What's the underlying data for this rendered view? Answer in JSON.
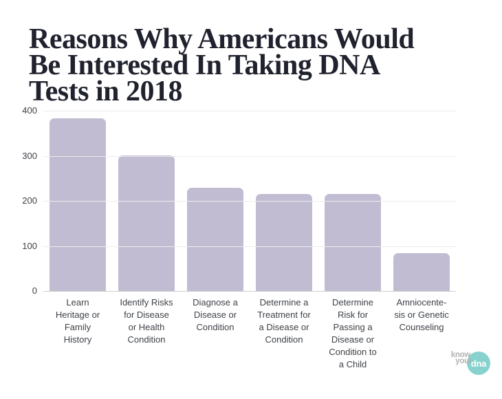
{
  "page": {
    "background_color": "#ffffff"
  },
  "header": {
    "title_lines": [
      "Reasons Why Americans Would",
      "Be Interested In Taking DNA",
      "Tests in 2018"
    ],
    "title_color": "#20222e"
  },
  "chart_data": {
    "type": "bar",
    "title": "Reasons Why Americans Would Be Interested In Taking DNA Tests in 2018",
    "categories": [
      "Learn Heritage or Family History",
      "Identify Risks for Disease or Health Condition",
      "Diagnose a Disease or Condition",
      "Determine a Treatment for a Disease or Condition",
      "Determine Risk for Passing a Disease or Condition to a Child",
      "Amniocentesis or Genetic Counseling"
    ],
    "category_lines": [
      [
        "Learn",
        "Heritage or",
        "Family",
        "History"
      ],
      [
        "Identify Risks",
        "for Disease",
        "or Health",
        "Condition"
      ],
      [
        "Diagnose a",
        "Disease or",
        "Condition"
      ],
      [
        "Determine a",
        "Treatment for",
        "a Disease or",
        "Condition"
      ],
      [
        "Determine",
        "Risk for",
        "Passing a",
        "Disease or",
        "Condition to",
        "a Child"
      ],
      [
        "Amniocente-",
        "sis or Genetic",
        "Counseling"
      ]
    ],
    "values": [
      385,
      303,
      230,
      217,
      217,
      85
    ],
    "xlabel": "",
    "ylabel": "",
    "ylim": [
      0,
      400
    ],
    "yticks": [
      0,
      100,
      200,
      300,
      400
    ],
    "bar_color": "#c1bcd2",
    "gridline_color": "#ececec",
    "baseline_color": "#cfcfcf",
    "grid": true,
    "legend": false
  },
  "branding": {
    "logo_line1": "know",
    "logo_line2": "your",
    "logo_circle_text": "dna",
    "circle_color": "#87d2cc",
    "logo_text_color": "#b3b1b2"
  }
}
